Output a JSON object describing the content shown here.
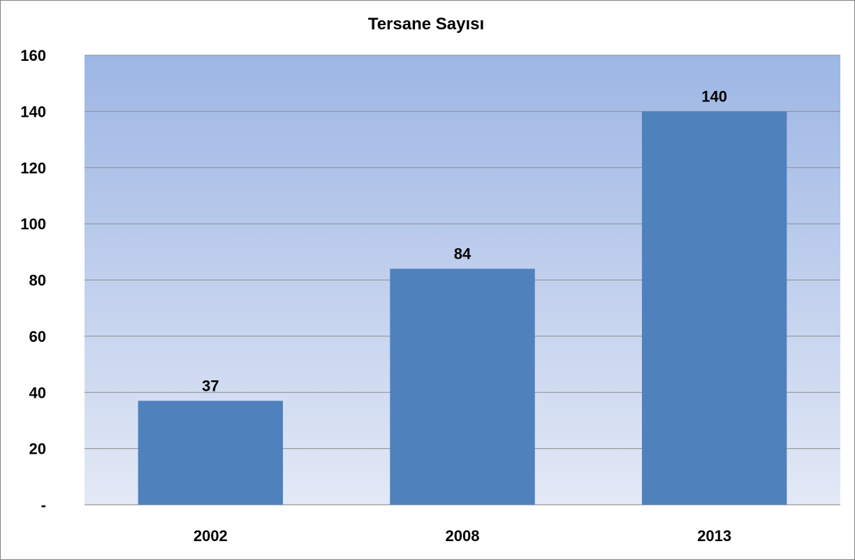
{
  "chart_data": {
    "type": "bar",
    "title": "Tersane Sayısı",
    "xlabel": "",
    "ylabel": "",
    "categories": [
      "2002",
      "2008",
      "2013"
    ],
    "values": [
      37,
      84,
      140
    ],
    "data_labels": [
      "37",
      "84",
      "140"
    ],
    "ylim": [
      0,
      160
    ],
    "yticks": [
      0,
      20,
      40,
      60,
      80,
      100,
      120,
      140,
      160
    ],
    "ytick_labels": [
      "-",
      "20",
      "40",
      "60",
      "80",
      "100",
      "120",
      "140",
      "160"
    ],
    "grid": true,
    "legend": "none",
    "colors": {
      "bar": "#4f81bd",
      "plot_bg_top": "#9db6e4",
      "plot_bg_bottom": "#e3e9f6",
      "gridline": "#8c8c8c"
    }
  }
}
